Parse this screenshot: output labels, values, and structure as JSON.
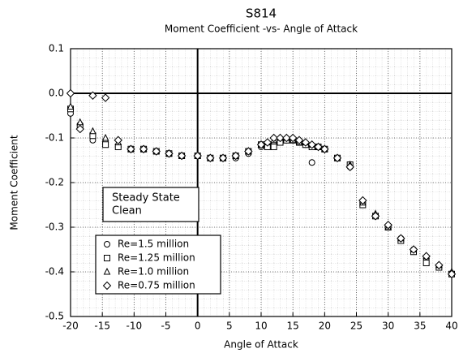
{
  "chart_data": {
    "type": "scatter",
    "title": "S814",
    "subtitle": "Moment Coefficient -vs- Angle of Attack",
    "x_label": "Angle of Attack",
    "y_label": "Moment Coefficient",
    "annotations": [
      "Steady State",
      "Clean"
    ],
    "xlim": [
      -20,
      40
    ],
    "ylim": [
      -0.5,
      0.1
    ],
    "xticks": [
      -20,
      -15,
      -10,
      -5,
      0,
      5,
      10,
      15,
      20,
      25,
      30,
      35,
      40
    ],
    "yticks": [
      0.1,
      {
        "value": 0,
        "label": "0.0"
      },
      -0.1,
      -0.2,
      -0.3,
      -0.4,
      -0.5
    ],
    "grid": true,
    "series": [
      {
        "name": "Re=1.5 million",
        "color": "#000000",
        "marker": "circle",
        "x": [
          -20,
          -18.5,
          -16.5,
          -14.5,
          -12.5,
          -10.5,
          -8.5,
          -6.5,
          -4.5,
          -2.5,
          0,
          2,
          4,
          6,
          8,
          10,
          11,
          12,
          13,
          14,
          15,
          16,
          17,
          18,
          19,
          20,
          22,
          24,
          26,
          28,
          30,
          32,
          34,
          36,
          38,
          40
        ],
        "values": [
          -0.045,
          -0.07,
          -0.105,
          -0.11,
          -0.12,
          -0.125,
          -0.125,
          -0.13,
          -0.135,
          -0.14,
          -0.14,
          -0.145,
          -0.145,
          -0.145,
          -0.135,
          -0.12,
          -0.115,
          -0.115,
          -0.11,
          -0.105,
          -0.105,
          -0.11,
          -0.115,
          -0.155,
          -0.12,
          -0.125,
          -0.145,
          -0.165,
          -0.245,
          -0.275,
          -0.3,
          -0.325,
          -0.35,
          -0.37,
          -0.39,
          -0.405
        ]
      },
      {
        "name": "Re=1.25 million",
        "color": "#000000",
        "marker": "square",
        "x": [
          -20,
          -18.5,
          -16.5,
          -14.5,
          -12.5,
          -10.5,
          -8.5,
          -6.5,
          -4.5,
          -2.5,
          0,
          2,
          4,
          6,
          8,
          10,
          11,
          12,
          13,
          14,
          15,
          16,
          17,
          18,
          19,
          20,
          22,
          24,
          26,
          28,
          30,
          32,
          34,
          36,
          38,
          40
        ],
        "values": [
          -0.035,
          -0.075,
          -0.095,
          -0.115,
          -0.12,
          -0.125,
          -0.125,
          -0.13,
          -0.135,
          -0.14,
          -0.14,
          -0.145,
          -0.145,
          -0.14,
          -0.13,
          -0.115,
          -0.12,
          -0.12,
          -0.11,
          -0.105,
          -0.105,
          -0.11,
          -0.115,
          -0.12,
          -0.12,
          -0.125,
          -0.145,
          -0.16,
          -0.25,
          -0.275,
          -0.3,
          -0.33,
          -0.355,
          -0.38,
          -0.39,
          -0.405
        ]
      },
      {
        "name": "Re=1.0 million",
        "color": "#000000",
        "marker": "triangle",
        "x": [
          -20,
          -18.5,
          -16.5,
          -14.5,
          -12.5,
          -10.5,
          -8.5,
          -6.5,
          -4.5,
          -2.5,
          0,
          2,
          4,
          6,
          8,
          10,
          11,
          12,
          13,
          14,
          15,
          16,
          17,
          18,
          19,
          20,
          22,
          24,
          26,
          28,
          30,
          32,
          34,
          36,
          38,
          40
        ],
        "values": [
          -0.03,
          -0.065,
          -0.085,
          -0.1,
          -0.11,
          -0.125,
          -0.125,
          -0.13,
          -0.135,
          -0.14,
          -0.14,
          -0.145,
          -0.145,
          -0.14,
          -0.13,
          -0.115,
          -0.11,
          -0.105,
          -0.1,
          -0.1,
          -0.105,
          -0.11,
          -0.11,
          -0.115,
          -0.12,
          -0.125,
          -0.145,
          -0.16,
          -0.245,
          -0.27,
          -0.3,
          -0.325,
          -0.35,
          -0.365,
          -0.385,
          -0.4
        ]
      },
      {
        "name": "Re=0.75 million",
        "color": "#000000",
        "marker": "diamond",
        "x": [
          -20,
          -18.5,
          -16.5,
          -14.5,
          -12.5,
          -10.5,
          -8.5,
          -6.5,
          -4.5,
          -2.5,
          0,
          2,
          4,
          6,
          8,
          10,
          11,
          12,
          13,
          14,
          15,
          16,
          17,
          18,
          19,
          20,
          22,
          24,
          26,
          28,
          30,
          32,
          34,
          36,
          38,
          40
        ],
        "values": [
          0.0,
          -0.08,
          -0.005,
          -0.01,
          -0.105,
          -0.125,
          -0.125,
          -0.13,
          -0.135,
          -0.14,
          -0.14,
          -0.145,
          -0.145,
          -0.14,
          -0.13,
          -0.115,
          -0.11,
          -0.1,
          -0.1,
          -0.1,
          -0.1,
          -0.105,
          -0.11,
          -0.115,
          -0.12,
          -0.125,
          -0.145,
          -0.165,
          -0.24,
          -0.275,
          -0.295,
          -0.325,
          -0.35,
          -0.365,
          -0.385,
          -0.405
        ]
      }
    ]
  }
}
